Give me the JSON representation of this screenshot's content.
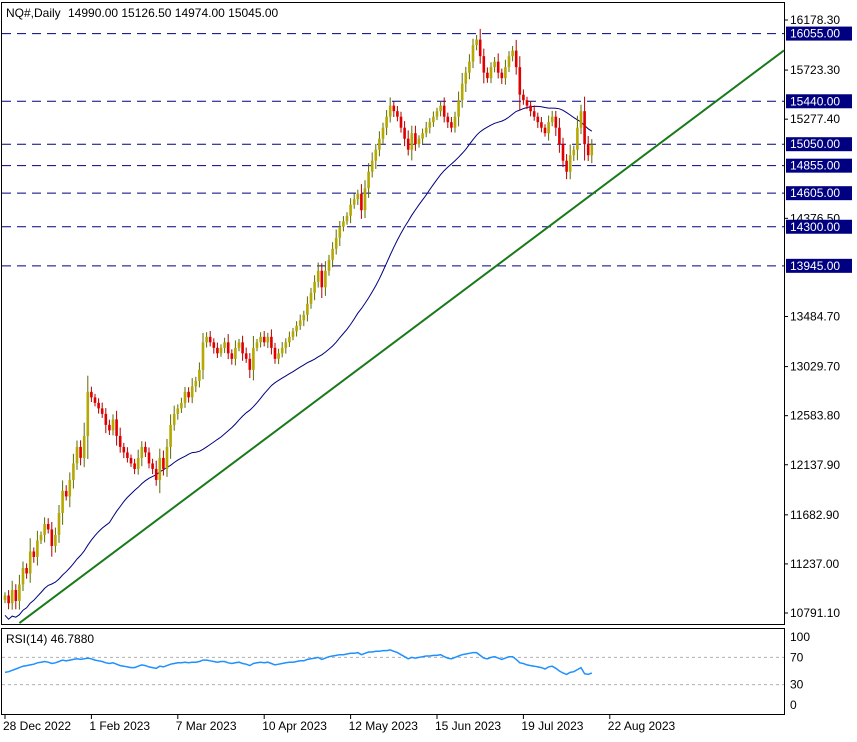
{
  "header": {
    "symbol_timeframe": "NQ#,Daily",
    "ohlc": "14990.00 15126.50 14974.00 15045.00"
  },
  "rsi_panel": {
    "label": "RSI(14) 46.7880",
    "levels": [
      "100",
      "70",
      "30",
      "0"
    ]
  },
  "chart_data": {
    "type": "candlestick",
    "price_axis": {
      "ylim": [
        10640,
        16290
      ],
      "tick_labels": [
        "16178.30",
        "15723.30",
        "15277.40",
        "14376.50",
        "13484.70",
        "13029.70",
        "12583.80",
        "12137.90",
        "11682.90",
        "11237.00",
        "10791.10"
      ]
    },
    "horizontal_levels": [
      {
        "label": "16055.00",
        "value": 16055
      },
      {
        "label": "15440.00",
        "value": 15440
      },
      {
        "label": "15050.00",
        "value": 15050
      },
      {
        "label": "14855.00",
        "value": 14855
      },
      {
        "label": "14605.00",
        "value": 14605
      },
      {
        "label": "14300.00",
        "value": 14300
      },
      {
        "label": "13945.00",
        "value": 13945
      }
    ],
    "trendline": {
      "start": {
        "bar": 4,
        "value": 10700
      },
      "end": {
        "bar": 191,
        "value": 15280
      },
      "color": "#1a7a1a"
    },
    "moving_average_color": "#000080",
    "x_axis_labels": [
      {
        "label": "28 Dec 2022",
        "bar": 0
      },
      {
        "label": "1 Feb 2023",
        "bar": 24
      },
      {
        "label": "7 Mar 2023",
        "bar": 48
      },
      {
        "label": "10 Apr 2023",
        "bar": 72
      },
      {
        "label": "12 May 2023",
        "bar": 96
      },
      {
        "label": "15 Jun 2023",
        "bar": 120
      },
      {
        "label": "19 Jul 2023",
        "bar": 144
      },
      {
        "label": "22 Aug 2023",
        "bar": 168
      }
    ],
    "closes": [
      10950,
      10880,
      11000,
      10900,
      11050,
      11200,
      11150,
      11350,
      11300,
      11450,
      11500,
      11600,
      11550,
      11400,
      11500,
      11700,
      11900,
      11850,
      12000,
      12150,
      12300,
      12200,
      12400,
      12800,
      12750,
      12700,
      12650,
      12600,
      12500,
      12450,
      12550,
      12400,
      12300,
      12250,
      12200,
      12150,
      12100,
      12200,
      12300,
      12250,
      12150,
      12100,
      12000,
      12200,
      12100,
      12300,
      12500,
      12600,
      12650,
      12700,
      12800,
      12750,
      12850,
      12900,
      13000,
      13250,
      13300,
      13250,
      13200,
      13150,
      13200,
      13250,
      13150,
      13100,
      13200,
      13250,
      13150,
      13100,
      13000,
      13200,
      13250,
      13300,
      13250,
      13300,
      13200,
      13100,
      13150,
      13200,
      13250,
      13300,
      13350,
      13400,
      13450,
      13500,
      13600,
      13700,
      13800,
      13900,
      13750,
      13900,
      14000,
      14100,
      14200,
      14300,
      14350,
      14400,
      14500,
      14550,
      14600,
      14450,
      14650,
      14800,
      14900,
      15000,
      15100,
      15200,
      15300,
      15400,
      15350,
      15300,
      15200,
      15100,
      15000,
      15150,
      15050,
      15100,
      15150,
      15200,
      15250,
      15300,
      15350,
      15400,
      15300,
      15250,
      15200,
      15300,
      15450,
      15600,
      15700,
      15800,
      15950,
      16000,
      15850,
      15700,
      15650,
      15750,
      15800,
      15700,
      15650,
      15750,
      15850,
      15900,
      15750,
      15500,
      15450,
      15400,
      15350,
      15300,
      15250,
      15200,
      15150,
      15250,
      15300,
      15200,
      15050,
      14900,
      14800,
      14950,
      15000,
      15200,
      15350,
      15050,
      14950,
      15045
    ],
    "rsi_values": [
      48,
      49,
      51,
      53,
      55,
      57,
      58,
      59,
      60,
      62,
      63,
      64,
      63,
      61,
      62,
      64,
      66,
      65,
      66,
      67,
      68,
      67,
      68,
      69,
      68,
      66,
      65,
      64,
      62,
      61,
      62,
      60,
      58,
      57,
      56,
      55,
      55,
      57,
      59,
      58,
      56,
      55,
      54,
      57,
      56,
      58,
      60,
      61,
      62,
      62,
      63,
      62,
      63,
      63,
      64,
      66,
      66,
      65,
      64,
      63,
      64,
      64,
      62,
      61,
      62,
      63,
      61,
      60,
      58,
      61,
      62,
      63,
      62,
      63,
      61,
      59,
      60,
      61,
      62,
      63,
      63,
      64,
      65,
      65,
      67,
      68,
      69,
      70,
      67,
      69,
      71,
      72,
      73,
      74,
      74,
      75,
      76,
      76,
      77,
      74,
      76,
      78,
      78,
      79,
      79,
      80,
      80,
      81,
      79,
      77,
      74,
      71,
      68,
      70,
      69,
      70,
      71,
      72,
      72,
      73,
      73,
      74,
      71,
      69,
      68,
      70,
      72,
      74,
      75,
      76,
      77,
      77,
      73,
      69,
      68,
      70,
      71,
      69,
      67,
      69,
      71,
      71,
      67,
      62,
      61,
      59,
      58,
      57,
      56,
      55,
      53,
      56,
      57,
      54,
      50,
      47,
      45,
      48,
      49,
      52,
      55,
      46,
      45,
      47
    ]
  }
}
